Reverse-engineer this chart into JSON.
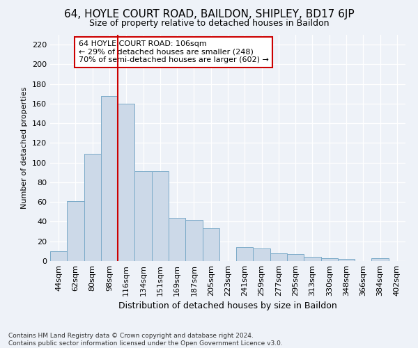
{
  "title1": "64, HOYLE COURT ROAD, BAILDON, SHIPLEY, BD17 6JP",
  "title2": "Size of property relative to detached houses in Baildon",
  "xlabel": "Distribution of detached houses by size in Baildon",
  "ylabel": "Number of detached properties",
  "footnote": "Contains HM Land Registry data © Crown copyright and database right 2024.\nContains public sector information licensed under the Open Government Licence v3.0.",
  "bar_labels": [
    "44sqm",
    "62sqm",
    "80sqm",
    "98sqm",
    "116sqm",
    "134sqm",
    "151sqm",
    "169sqm",
    "187sqm",
    "205sqm",
    "223sqm",
    "241sqm",
    "259sqm",
    "277sqm",
    "295sqm",
    "313sqm",
    "330sqm",
    "348sqm",
    "366sqm",
    "384sqm",
    "402sqm"
  ],
  "bar_values": [
    10,
    61,
    109,
    168,
    160,
    91,
    91,
    44,
    42,
    33,
    0,
    14,
    13,
    8,
    7,
    4,
    3,
    2,
    0,
    3,
    0
  ],
  "bar_color": "#ccd9e8",
  "bar_edge_color": "#7aaac8",
  "ylim": [
    0,
    230
  ],
  "yticks": [
    0,
    20,
    40,
    60,
    80,
    100,
    120,
    140,
    160,
    180,
    200,
    220
  ],
  "vline_x": 3.5,
  "vline_color": "#cc0000",
  "annotation_text": "64 HOYLE COURT ROAD: 106sqm\n← 29% of detached houses are smaller (248)\n70% of semi-detached houses are larger (602) →",
  "annotation_box_color": "#ffffff",
  "annotation_box_edge": "#cc0000",
  "bg_color": "#eef2f8",
  "title1_fontsize": 11,
  "title2_fontsize": 9,
  "xlabel_fontsize": 9,
  "ylabel_fontsize": 8,
  "tick_fontsize": 8,
  "annot_fontsize": 8,
  "footnote_fontsize": 6.5
}
